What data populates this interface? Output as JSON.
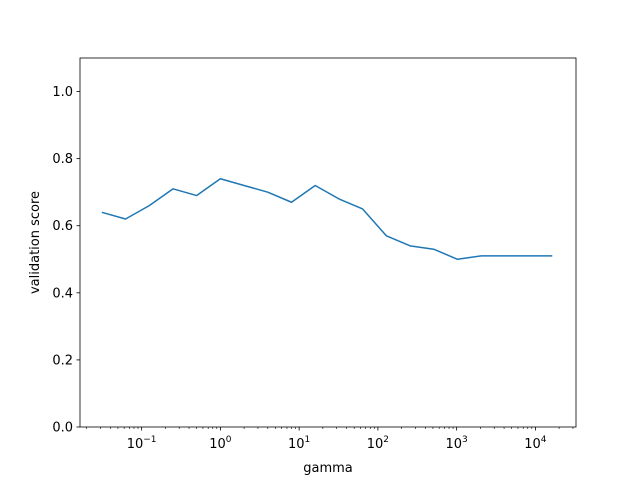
{
  "chart_data": {
    "type": "line",
    "title": "",
    "xlabel": "gamma",
    "ylabel": "validation score",
    "xscale": "log",
    "xlim": [
      0.0165,
      32768
    ],
    "ylim": [
      0.0,
      1.1
    ],
    "grid": false,
    "legend": null,
    "x_ticks": [
      {
        "value": 0.1,
        "base": "10",
        "exp": "−1"
      },
      {
        "value": 1,
        "base": "10",
        "exp": "0"
      },
      {
        "value": 10,
        "base": "10",
        "exp": "1"
      },
      {
        "value": 100,
        "base": "10",
        "exp": "2"
      },
      {
        "value": 1000,
        "base": "10",
        "exp": "3"
      },
      {
        "value": 10000,
        "base": "10",
        "exp": "4"
      }
    ],
    "y_ticks": [
      {
        "value": 0.0,
        "label": "0.0"
      },
      {
        "value": 0.2,
        "label": "0.2"
      },
      {
        "value": 0.4,
        "label": "0.4"
      },
      {
        "value": 0.6,
        "label": "0.6"
      },
      {
        "value": 0.8,
        "label": "0.8"
      },
      {
        "value": 1.0,
        "label": "1.0"
      }
    ],
    "series": [
      {
        "color": "#1f77b4",
        "x": [
          0.03125,
          0.0625,
          0.125,
          0.25,
          0.5,
          1,
          2,
          4,
          8,
          16,
          32,
          64,
          128,
          256,
          512,
          1024,
          2048,
          4096,
          8192,
          16384
        ],
        "y": [
          0.64,
          0.62,
          0.66,
          0.71,
          0.69,
          0.74,
          0.72,
          0.7,
          0.67,
          0.72,
          0.68,
          0.65,
          0.57,
          0.54,
          0.53,
          0.5,
          0.51,
          0.51,
          0.51,
          0.51
        ]
      }
    ]
  }
}
